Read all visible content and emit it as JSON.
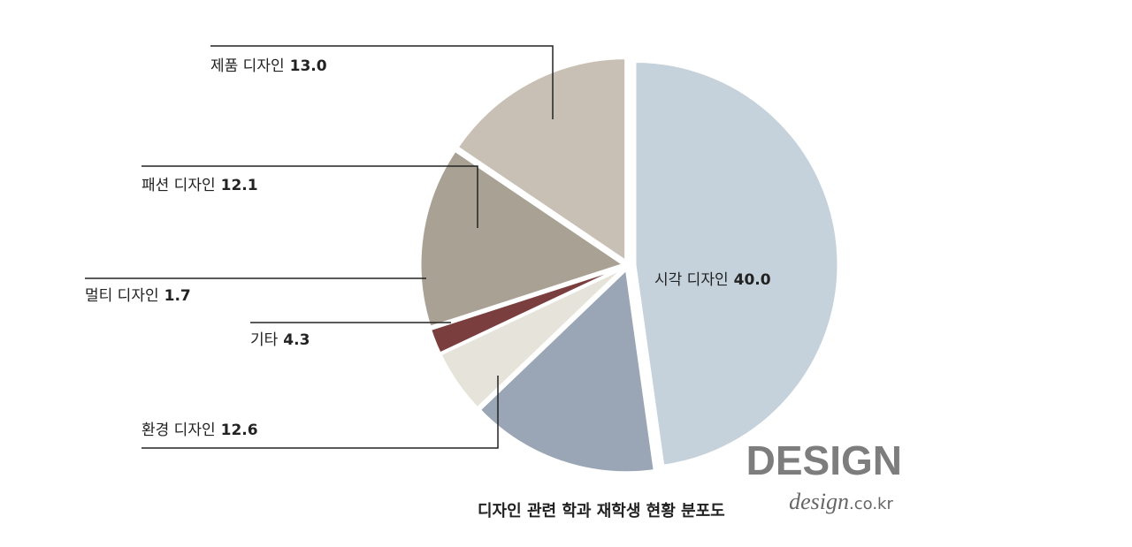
{
  "chart_data": {
    "type": "pie",
    "title": "디자인 관련 학과 재학생 현황 분포도",
    "brand": "DESIGN",
    "brand_url": "design",
    "brand_domain": ".co.kr",
    "categories": [
      "시각 디자인",
      "환경 디자인",
      "기타",
      "멀티 디자인",
      "패션 디자인",
      "제품 디자인"
    ],
    "values": [
      40.0,
      12.6,
      4.3,
      1.7,
      12.1,
      13.0
    ],
    "value_labels": [
      "40.0",
      "12.6",
      "4.3",
      "1.7",
      "12.1",
      "13.0"
    ],
    "colors": [
      "#c5d2dc",
      "#9aa6b5",
      "#e6e4da",
      "#7a3e3e",
      "#a8a194",
      "#c8c0b4"
    ]
  }
}
